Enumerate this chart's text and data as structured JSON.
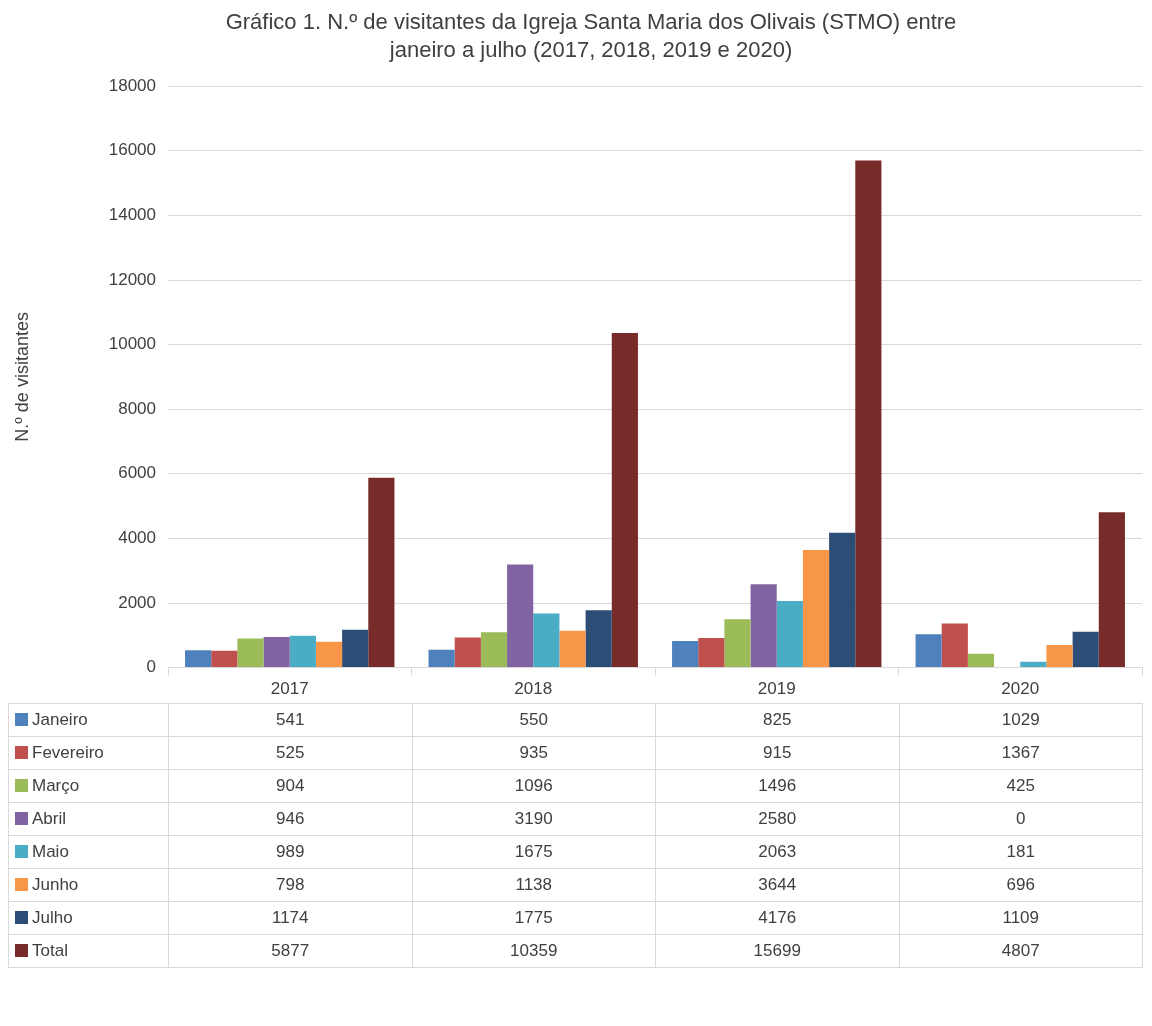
{
  "chart_data": {
    "type": "bar",
    "title": "Gráfico 1. N.º de visitantes da Igreja Santa Maria dos Olivais (STMO) entre janeiro a julho (2017, 2018, 2019 e 2020)",
    "ylabel": "N.º de visitantes",
    "categories": [
      "2017",
      "2018",
      "2019",
      "2020"
    ],
    "series": [
      {
        "name": "Janeiro",
        "color": "#4f81bd",
        "values": [
          541,
          550,
          825,
          1029
        ]
      },
      {
        "name": "Fevereiro",
        "color": "#c0504d",
        "values": [
          525,
          935,
          915,
          1367
        ]
      },
      {
        "name": "Março",
        "color": "#9bbb59",
        "values": [
          904,
          1096,
          1496,
          425
        ]
      },
      {
        "name": "Abril",
        "color": "#8064a2",
        "values": [
          946,
          3190,
          2580,
          0
        ]
      },
      {
        "name": "Maio",
        "color": "#4bacc6",
        "values": [
          989,
          1675,
          2063,
          181
        ]
      },
      {
        "name": "Junho",
        "color": "#f79646",
        "values": [
          798,
          1138,
          3644,
          696
        ]
      },
      {
        "name": "Julho",
        "color": "#2c4d75",
        "values": [
          1174,
          1775,
          4176,
          1109
        ]
      },
      {
        "name": "Total",
        "color": "#772c2a",
        "values": [
          5877,
          10359,
          15699,
          4807
        ]
      }
    ],
    "ylim": [
      0,
      18000
    ],
    "yticks": [
      0,
      2000,
      4000,
      6000,
      8000,
      10000,
      12000,
      14000,
      16000,
      18000
    ],
    "grid": "y",
    "legend": "bottom",
    "data_labels": true
  }
}
